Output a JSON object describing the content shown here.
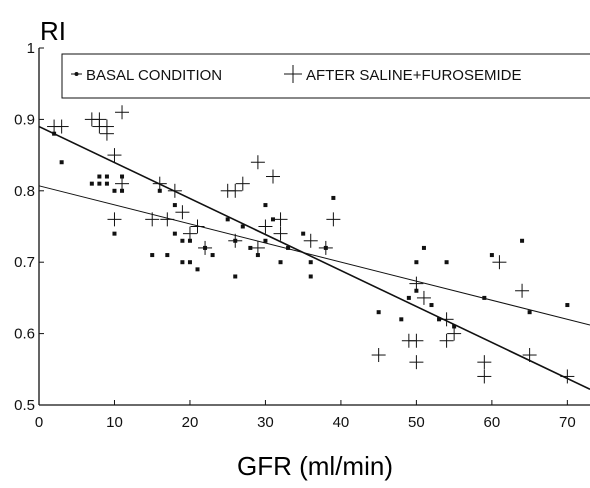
{
  "chart_data": {
    "type": "scatter",
    "ylabel": "RI",
    "xlabel": "GFR (ml/min)",
    "xlim": [
      0,
      73
    ],
    "ylim": [
      0.5,
      1.0
    ],
    "xticks": [
      0,
      10,
      20,
      30,
      40,
      50,
      60,
      70
    ],
    "yticks": [
      0.5,
      0.6,
      0.7,
      0.8,
      0.9,
      1.0
    ],
    "ytick_labels": [
      "0.5",
      "0.6",
      "0.7",
      "0.8",
      "0.9",
      "1"
    ],
    "grid": false,
    "legend_position": "top",
    "series": [
      {
        "name": "BASAL CONDITION",
        "marker": "dot",
        "points": [
          [
            2,
            0.88
          ],
          [
            3,
            0.84
          ],
          [
            7,
            0.81
          ],
          [
            8,
            0.81
          ],
          [
            8,
            0.82
          ],
          [
            9,
            0.82
          ],
          [
            9,
            0.81
          ],
          [
            10,
            0.74
          ],
          [
            10,
            0.8
          ],
          [
            11,
            0.8
          ],
          [
            11,
            0.82
          ],
          [
            15,
            0.71
          ],
          [
            16,
            0.8
          ],
          [
            17,
            0.71
          ],
          [
            18,
            0.74
          ],
          [
            18,
            0.78
          ],
          [
            19,
            0.73
          ],
          [
            19,
            0.7
          ],
          [
            20,
            0.7
          ],
          [
            20,
            0.73
          ],
          [
            21,
            0.69
          ],
          [
            22,
            0.72
          ],
          [
            23,
            0.71
          ],
          [
            25,
            0.76
          ],
          [
            26,
            0.73
          ],
          [
            26,
            0.68
          ],
          [
            27,
            0.75
          ],
          [
            28,
            0.72
          ],
          [
            29,
            0.71
          ],
          [
            30,
            0.78
          ],
          [
            30,
            0.73
          ],
          [
            31,
            0.76
          ],
          [
            32,
            0.7
          ],
          [
            33,
            0.72
          ],
          [
            35,
            0.74
          ],
          [
            36,
            0.68
          ],
          [
            36,
            0.7
          ],
          [
            38,
            0.72
          ],
          [
            39,
            0.79
          ],
          [
            45,
            0.63
          ],
          [
            48,
            0.62
          ],
          [
            49,
            0.65
          ],
          [
            50,
            0.7
          ],
          [
            50,
            0.66
          ],
          [
            51,
            0.72
          ],
          [
            52,
            0.64
          ],
          [
            53,
            0.62
          ],
          [
            54,
            0.7
          ],
          [
            55,
            0.61
          ],
          [
            59,
            0.65
          ],
          [
            60,
            0.71
          ],
          [
            64,
            0.73
          ],
          [
            65,
            0.63
          ],
          [
            70,
            0.64
          ]
        ]
      },
      {
        "name": "AFTER SALINE+FUROSEMIDE",
        "marker": "plus",
        "points": [
          [
            2,
            0.89
          ],
          [
            3,
            0.89
          ],
          [
            7,
            0.9
          ],
          [
            8,
            0.89
          ],
          [
            8,
            0.9
          ],
          [
            9,
            0.88
          ],
          [
            9,
            0.89
          ],
          [
            10,
            0.85
          ],
          [
            10,
            0.76
          ],
          [
            11,
            0.81
          ],
          [
            11,
            0.91
          ],
          [
            15,
            0.76
          ],
          [
            16,
            0.81
          ],
          [
            17,
            0.76
          ],
          [
            18,
            0.8
          ],
          [
            19,
            0.77
          ],
          [
            20,
            0.74
          ],
          [
            21,
            0.75
          ],
          [
            22,
            0.72
          ],
          [
            25,
            0.8
          ],
          [
            26,
            0.8
          ],
          [
            26,
            0.73
          ],
          [
            27,
            0.81
          ],
          [
            29,
            0.84
          ],
          [
            29,
            0.72
          ],
          [
            30,
            0.75
          ],
          [
            31,
            0.82
          ],
          [
            32,
            0.74
          ],
          [
            32,
            0.76
          ],
          [
            36,
            0.73
          ],
          [
            38,
            0.72
          ],
          [
            39,
            0.76
          ],
          [
            45,
            0.57
          ],
          [
            49,
            0.59
          ],
          [
            50,
            0.59
          ],
          [
            50,
            0.67
          ],
          [
            50,
            0.56
          ],
          [
            51,
            0.65
          ],
          [
            54,
            0.62
          ],
          [
            54,
            0.59
          ],
          [
            55,
            0.6
          ],
          [
            59,
            0.56
          ],
          [
            59,
            0.54
          ],
          [
            61,
            0.7
          ],
          [
            64,
            0.66
          ],
          [
            65,
            0.57
          ],
          [
            70,
            0.54
          ]
        ]
      }
    ],
    "regression_lines": [
      {
        "series": "BASAL CONDITION",
        "start": [
          0,
          0.807
        ],
        "end": [
          73,
          0.612
        ]
      },
      {
        "series": "AFTER SALINE+FUROSEMIDE",
        "start": [
          0,
          0.89
        ],
        "end": [
          73,
          0.522
        ]
      }
    ]
  }
}
